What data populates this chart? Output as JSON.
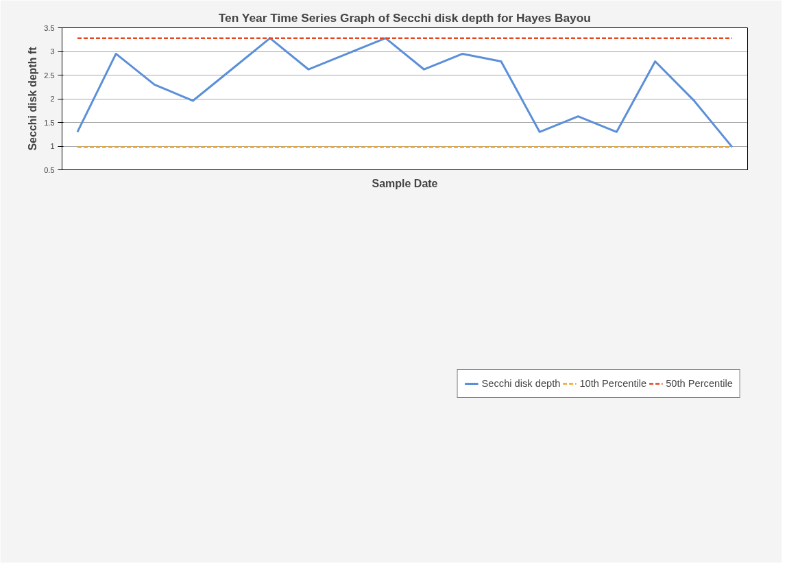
{
  "chart_data": {
    "type": "line",
    "title": "Ten Year Time Series Graph of Secchi disk depth for Hayes Bayou",
    "xlabel": "Sample Date",
    "ylabel": "Secchi disk depth ft",
    "categories": [
      null,
      null,
      null,
      null,
      null,
      null,
      null,
      null,
      null,
      null,
      null,
      null,
      null,
      null,
      null,
      null,
      null,
      null
    ],
    "series": [
      {
        "name": "Secchi disk depth",
        "color": "#5b8fd9",
        "values": [
          1.3,
          2.95,
          2.3,
          1.96,
          2.62,
          3.28,
          2.62,
          2.95,
          3.28,
          2.62,
          2.95,
          2.79,
          1.3,
          1.63,
          1.3,
          2.79,
          1.97,
          0.98
        ]
      }
    ],
    "ref_lines": [
      {
        "axis": "y",
        "value": 0.98,
        "label": "10th Percentile",
        "color": "#f5a623",
        "line_style": "dashed"
      },
      {
        "axis": "y",
        "value": 3.28,
        "label": "50th Percentile",
        "color": "#e8441c",
        "line_style": "dashed"
      }
    ],
    "ylim": [
      0.5,
      3.5
    ],
    "yticks": [
      0.5,
      1,
      1.5,
      2,
      2.5,
      3,
      3.5
    ],
    "grid": "y",
    "legend": "bottom",
    "tick_labels": "y",
    "marker": "none",
    "line_style": "solid"
  }
}
